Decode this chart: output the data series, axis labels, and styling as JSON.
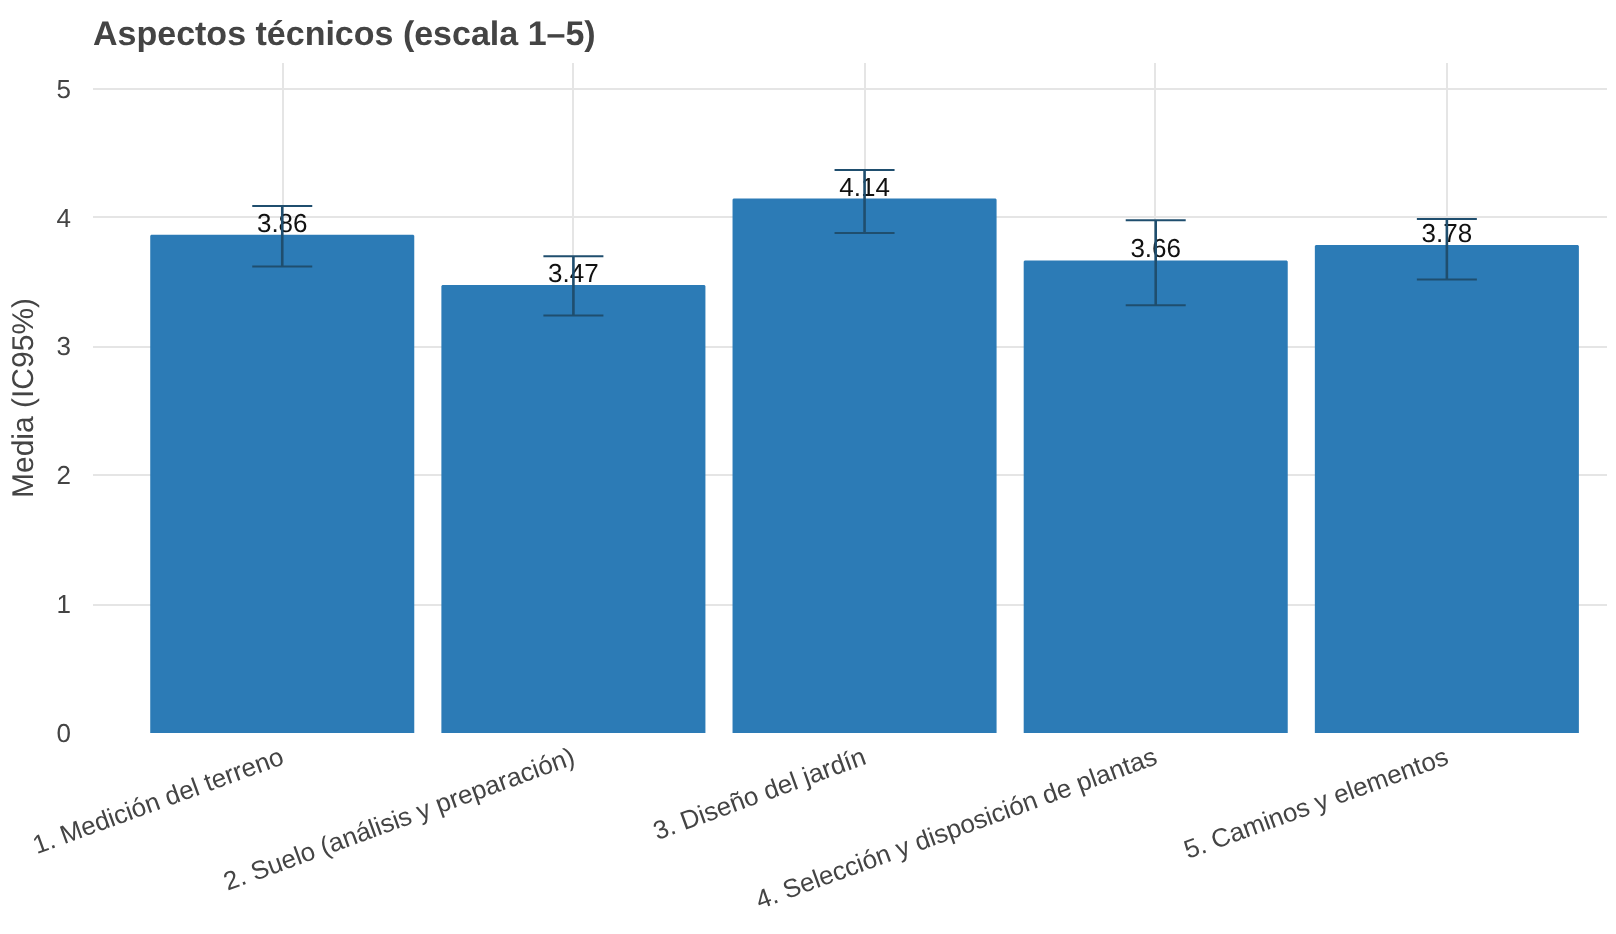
{
  "chart_data": {
    "type": "bar",
    "title": "Aspectos técnicos (escala 1–5)",
    "ylabel": "Media (IC95%)",
    "categories": [
      "1. Medición del terreno",
      "2. Suelo (análisis y preparación)",
      "3. Diseño del jardín",
      "4. Selección y disposición de plantas",
      "5. Caminos y elementos"
    ],
    "values": [
      3.86,
      3.47,
      4.14,
      3.66,
      3.78
    ],
    "errors": [
      [
        3.62,
        4.09
      ],
      [
        3.24,
        3.7
      ],
      [
        3.88,
        4.37
      ],
      [
        3.32,
        3.98
      ],
      [
        3.52,
        3.99
      ]
    ],
    "color": "#2c7bb6",
    "ylim": [
      0,
      5.2
    ],
    "yticks": [
      0,
      1,
      2,
      3,
      4,
      5
    ],
    "grid": true,
    "data_labels": true
  }
}
